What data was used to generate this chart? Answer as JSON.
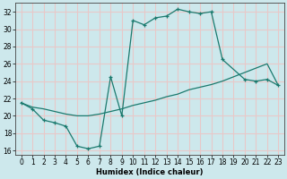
{
  "xlabel": "Humidex (Indice chaleur)",
  "bg_color": "#cde8ec",
  "grid_color": "#e8c8c8",
  "line_color": "#1a7a6e",
  "xlim": [
    -0.5,
    23.5
  ],
  "ylim": [
    15.5,
    33.0
  ],
  "yticks": [
    16,
    18,
    20,
    22,
    24,
    26,
    28,
    30,
    32
  ],
  "xticks": [
    0,
    1,
    2,
    3,
    4,
    5,
    6,
    7,
    8,
    9,
    10,
    11,
    12,
    13,
    14,
    15,
    16,
    17,
    18,
    19,
    20,
    21,
    22,
    23
  ],
  "series1_x": [
    0,
    1,
    2,
    3,
    4,
    5,
    6,
    7,
    8,
    9,
    10,
    11,
    12,
    13,
    14,
    15,
    16,
    17,
    18,
    20,
    21,
    22,
    23
  ],
  "series1_y": [
    21.5,
    20.8,
    19.5,
    19.2,
    18.8,
    16.5,
    16.2,
    16.5,
    24.5,
    20.0,
    31.0,
    30.5,
    31.3,
    31.5,
    32.3,
    32.0,
    31.8,
    32.0,
    26.5,
    24.2,
    24.0,
    24.2,
    23.5
  ],
  "series2_x": [
    0,
    1,
    2,
    3,
    4,
    5,
    6,
    7,
    8,
    9,
    10,
    11,
    12,
    13,
    14,
    15,
    16,
    17,
    18,
    19,
    20,
    21,
    22,
    23
  ],
  "series2_y": [
    21.5,
    21.0,
    20.8,
    20.5,
    20.2,
    20.0,
    20.0,
    20.2,
    20.5,
    20.8,
    21.2,
    21.5,
    21.8,
    22.2,
    22.5,
    23.0,
    23.3,
    23.6,
    24.0,
    24.5,
    25.0,
    25.5,
    26.0,
    23.5
  ]
}
